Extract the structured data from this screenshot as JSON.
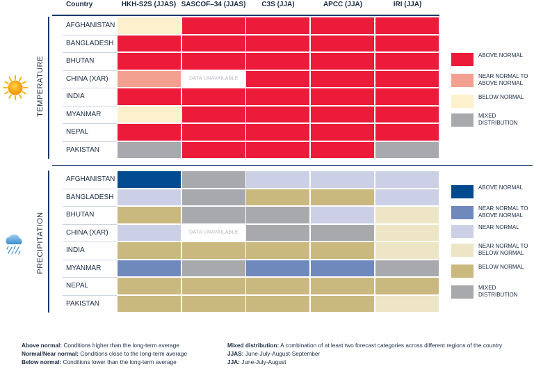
{
  "columns": {
    "country": "Country",
    "sources": [
      "HKH-S2S (JJAS)",
      "SASCOF–34 (JJAS)",
      "C3S (JJA)",
      "APCC (JJA)",
      "IRI (JJA)"
    ]
  },
  "temperature": {
    "title": "TEMPERATURE",
    "icon": "sun-icon",
    "countries": [
      "AFGHANISTAN",
      "BANGLADESH",
      "BHUTAN",
      "CHINA (XAR)",
      "INDIA",
      "MYANMAR",
      "NEPAL",
      "PAKISTAN"
    ],
    "legend": [
      {
        "key": "above",
        "label": "ABOVE NORMAL",
        "color": "#ed1b3a"
      },
      {
        "key": "near_above",
        "label": "NEAR NORMAL TO ABOVE NORMAL",
        "color": "#f4a090"
      },
      {
        "key": "below",
        "label": "BELOW NORMAL",
        "color": "#fdf0cc"
      },
      {
        "key": "mixed",
        "label": "MIXED DISTRIBUTION",
        "color": "#a7a9ac"
      }
    ],
    "grid": [
      [
        "below",
        "above",
        "above",
        "above",
        "above"
      ],
      [
        "above",
        "above",
        "above",
        "above",
        "above"
      ],
      [
        "above",
        "above",
        "above",
        "above",
        "above"
      ],
      [
        "near_above",
        "na",
        "above",
        "above",
        "above"
      ],
      [
        "above",
        "above",
        "above",
        "above",
        "above"
      ],
      [
        "below",
        "above",
        "above",
        "above",
        "above"
      ],
      [
        "above",
        "above",
        "above",
        "above",
        "above"
      ],
      [
        "mixed",
        "above",
        "above",
        "above",
        "mixed"
      ]
    ]
  },
  "precipitation": {
    "title": "PRECIPITATION",
    "icon": "rain-cloud-icon",
    "countries": [
      "AFGHANISTAN",
      "BANGLADESH",
      "BHUTAN",
      "CHINA (XAR)",
      "INDIA",
      "MYANMAR",
      "NEPAL",
      "PAKISTAN"
    ],
    "legend": [
      {
        "key": "above",
        "label": "ABOVE NORMAL",
        "color": "#014a8f"
      },
      {
        "key": "near_above",
        "label": "NEAR NORMAL TO ABOVE NORMAL",
        "color": "#7089bd"
      },
      {
        "key": "near",
        "label": "NEAR NORMAL",
        "color": "#cbd0e6"
      },
      {
        "key": "near_below",
        "label": "NEAR NORMAL TO BELOW NORMAL",
        "color": "#ede5c6"
      },
      {
        "key": "below",
        "label": "BELOW NORMAL",
        "color": "#c9b97f"
      },
      {
        "key": "mixed",
        "label": "MIXED DISTRIBUTION",
        "color": "#a7a9ac"
      }
    ],
    "grid": [
      [
        "above",
        "mixed",
        "near",
        "near",
        "near"
      ],
      [
        "near",
        "mixed",
        "below",
        "below",
        "near"
      ],
      [
        "below",
        "mixed",
        "mixed",
        "near",
        "near_below"
      ],
      [
        "near",
        "na",
        "mixed",
        "mixed",
        "near_below"
      ],
      [
        "below",
        "below",
        "below",
        "below",
        "near_below"
      ],
      [
        "near_above",
        "mixed",
        "near_above",
        "near_above",
        "mixed"
      ],
      [
        "below",
        "below",
        "below",
        "below",
        "below"
      ],
      [
        "below",
        "below",
        "below",
        "below",
        "near_below"
      ]
    ]
  },
  "data_unavailable": "DATA UNAVAILABLE",
  "footnotes": {
    "left": [
      {
        "term": "Above normal:",
        "text": " Conditions higher than the long-term average"
      },
      {
        "term": "Normal/Near normal:",
        "text": " Conditions close to the long-term average"
      },
      {
        "term": "Below normal:",
        "text": " Conditions lower than the long-term average"
      }
    ],
    "right": [
      {
        "term": "Mixed distribution:",
        "text": " A combination of at least two forecast categories across different regions of the country"
      },
      {
        "term": "JJAS:",
        "text": " June-July-August-September"
      },
      {
        "term": "JJA:",
        "text": " June-July-August"
      }
    ]
  }
}
